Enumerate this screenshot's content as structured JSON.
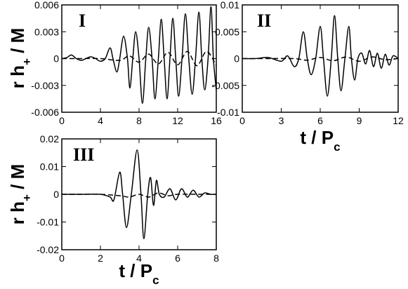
{
  "chart_data": [
    {
      "type": "line",
      "annotation": "I",
      "ylabel": {
        "main": "r h",
        "sub": "+",
        "rest": " / M"
      },
      "xlim": [
        0,
        16
      ],
      "xticks": [
        0,
        4,
        8,
        12,
        16
      ],
      "ylim": [
        -0.006,
        0.006
      ],
      "yticks": [
        -0.006,
        -0.003,
        0,
        0.003,
        0.006
      ],
      "series": [
        {
          "color": "#000000",
          "style": "solid",
          "x": [
            0,
            0.5,
            1,
            1.5,
            2,
            2.5,
            3,
            3.5,
            4,
            4.5,
            5,
            5.3,
            5.7,
            6,
            6.4,
            6.8,
            7.05,
            7.35,
            7.65,
            8.0,
            8.35,
            8.7,
            9.0,
            9.35,
            9.65,
            10.0,
            10.3,
            10.6,
            10.9,
            11.2,
            11.5,
            11.8,
            12.1,
            12.45,
            12.8,
            13.15,
            13.5,
            13.85,
            14.2,
            14.5,
            14.8,
            15.15,
            15.45,
            15.7,
            16
          ],
          "values": [
            0,
            0.0001,
            0.0004,
            0,
            -0.0002,
            0,
            0.0002,
            0,
            -0.0003,
            0,
            0.0012,
            0,
            -0.0015,
            0,
            0.0025,
            0,
            -0.0033,
            0,
            0.003,
            0,
            -0.005,
            0,
            0.0035,
            0,
            -0.0045,
            0,
            0.0044,
            0,
            -0.0045,
            0,
            0.0045,
            0,
            -0.0042,
            0,
            0.005,
            0,
            -0.004,
            0,
            0.0052,
            0,
            -0.0035,
            0,
            0.0058,
            0,
            -0.0035
          ]
        },
        {
          "color": "#000000",
          "style": "dashed",
          "x": [
            0,
            2,
            4,
            6,
            7,
            8,
            9,
            10,
            11,
            12,
            13,
            14,
            15,
            16
          ],
          "values": [
            0,
            0,
            0,
            -0.0002,
            0.0003,
            -0.0004,
            0.0005,
            -0.0006,
            0.0007,
            -0.0007,
            0.0008,
            -0.0008,
            0.0008,
            -0.0008
          ]
        }
      ]
    },
    {
      "type": "line",
      "annotation": "II",
      "xlabel": {
        "main": "t / P",
        "sub": "c"
      },
      "xlim": [
        0,
        12
      ],
      "xticks": [
        0,
        3,
        6,
        9,
        12
      ],
      "ylim": [
        -0.01,
        0.01
      ],
      "yticks": [
        -0.01,
        -0.005,
        0,
        0.005,
        0.01
      ],
      "series": [
        {
          "color": "#000000",
          "style": "solid",
          "x": [
            0,
            1,
            2,
            3,
            3.5,
            4,
            4.35,
            4.7,
            5.0,
            5.3,
            5.65,
            6.0,
            6.25,
            6.55,
            6.85,
            7.1,
            7.35,
            7.6,
            7.9,
            8.2,
            8.4,
            8.65,
            8.9,
            9.2,
            9.5,
            9.8,
            10.1,
            10.4,
            10.7,
            11,
            11.3,
            11.6,
            12
          ],
          "values": [
            0,
            0,
            0.0002,
            -0.0005,
            0.0005,
            -0.0015,
            0,
            0.005,
            0,
            -0.003,
            0,
            0.006,
            0,
            -0.007,
            0,
            0.008,
            0,
            -0.006,
            0,
            0.006,
            0,
            -0.004,
            0,
            0.001,
            -0.001,
            0.0015,
            -0.0015,
            0.001,
            -0.0018,
            0.0008,
            -0.0012,
            0.0005,
            0
          ]
        },
        {
          "color": "#000000",
          "style": "dashed",
          "x": [
            0,
            2,
            4,
            5,
            6,
            7,
            8,
            9,
            10,
            11,
            12
          ],
          "values": [
            0,
            0,
            0,
            -0.0003,
            0.0002,
            -0.0004,
            0.0003,
            -0.0005,
            0.0003,
            -0.0002,
            0
          ]
        }
      ]
    },
    {
      "type": "line",
      "annotation": "III",
      "ylabel": {
        "main": "r h",
        "sub": "+",
        "rest": " / M"
      },
      "xlabel": {
        "main": "t / P",
        "sub": "c"
      },
      "xlim": [
        0,
        8
      ],
      "xticks": [
        0,
        2,
        4,
        6,
        8
      ],
      "ylim": [
        -0.02,
        0.02
      ],
      "yticks": [
        -0.02,
        -0.01,
        0,
        0.01,
        0.02
      ],
      "series": [
        {
          "color": "#000000",
          "style": "solid",
          "x": [
            0,
            1,
            2,
            2.5,
            2.7,
            3.0,
            3.15,
            3.35,
            3.6,
            3.9,
            4.1,
            4.25,
            4.45,
            4.6,
            4.75,
            4.9,
            5.05,
            5.3,
            5.6,
            5.9,
            6.2,
            6.5,
            6.8,
            7.1,
            7.4,
            7.7,
            8
          ],
          "values": [
            0,
            0,
            0,
            -0.001,
            -0.002,
            0.008,
            0,
            -0.012,
            0,
            0.016,
            0,
            -0.016,
            0,
            0.006,
            -0.004,
            0.005,
            0,
            -0.001,
            0.002,
            -0.002,
            0.002,
            -0.001,
            0.0015,
            -0.001,
            0.0005,
            0,
            0
          ]
        },
        {
          "color": "#000000",
          "style": "dashed",
          "x": [
            0,
            1,
            2,
            3,
            3.5,
            4,
            4.5,
            5,
            5.5,
            6,
            7,
            8
          ],
          "values": [
            0,
            0,
            0,
            -0.0005,
            -0.001,
            0,
            -0.001,
            0.0005,
            -0.0005,
            0,
            0,
            0
          ]
        }
      ]
    }
  ]
}
